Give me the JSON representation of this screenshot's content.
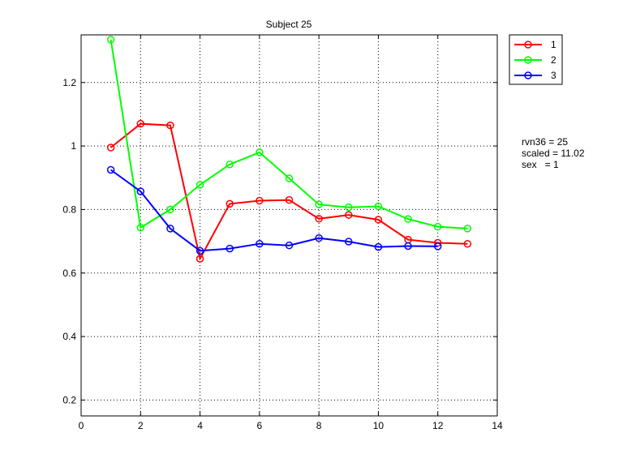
{
  "chart_data": {
    "type": "line",
    "title": "Subject 25",
    "xlabel": "",
    "ylabel": "",
    "xlim": [
      0,
      14
    ],
    "ylim": [
      0.15,
      1.35
    ],
    "xticks": [
      0,
      2,
      4,
      6,
      8,
      10,
      12,
      14
    ],
    "yticks": [
      0.2,
      0.4,
      0.6,
      0.8,
      1,
      1.2
    ],
    "xtick_labels": [
      "0",
      "2",
      "4",
      "6",
      "8",
      "10",
      "12",
      "14"
    ],
    "ytick_labels": [
      "0.2",
      "0.4",
      "0.6",
      "0.8",
      "1",
      "1.2"
    ],
    "grid": true,
    "legend_position": "top-right outside",
    "series": [
      {
        "name": "1",
        "color": "#ff0000",
        "x": [
          1,
          2,
          3,
          4,
          5,
          6,
          7,
          8,
          9,
          10,
          11,
          12,
          13
        ],
        "y": [
          0.995,
          1.07,
          1.065,
          0.645,
          0.818,
          0.828,
          0.83,
          0.771,
          0.783,
          0.768,
          0.705,
          0.695,
          0.692
        ]
      },
      {
        "name": "2",
        "color": "#00ff00",
        "x": [
          1,
          2,
          3,
          4,
          5,
          6,
          7,
          8,
          9,
          10,
          11,
          12,
          13
        ],
        "y": [
          1.335,
          0.743,
          0.8,
          0.878,
          0.942,
          0.98,
          0.898,
          0.816,
          0.807,
          0.81,
          0.77,
          0.746,
          0.74
        ]
      },
      {
        "name": "3",
        "color": "#0000ff",
        "x": [
          1,
          2,
          3,
          4,
          5,
          6,
          7,
          8,
          9,
          10,
          11,
          12
        ],
        "y": [
          0.925,
          0.857,
          0.74,
          0.67,
          0.677,
          0.692,
          0.687,
          0.71,
          0.699,
          0.682,
          0.685,
          0.684
        ]
      }
    ]
  },
  "annotations": {
    "line1": "rvn36 = 25",
    "line2": "scaled = 11.02",
    "line3": "sex   = 1"
  }
}
